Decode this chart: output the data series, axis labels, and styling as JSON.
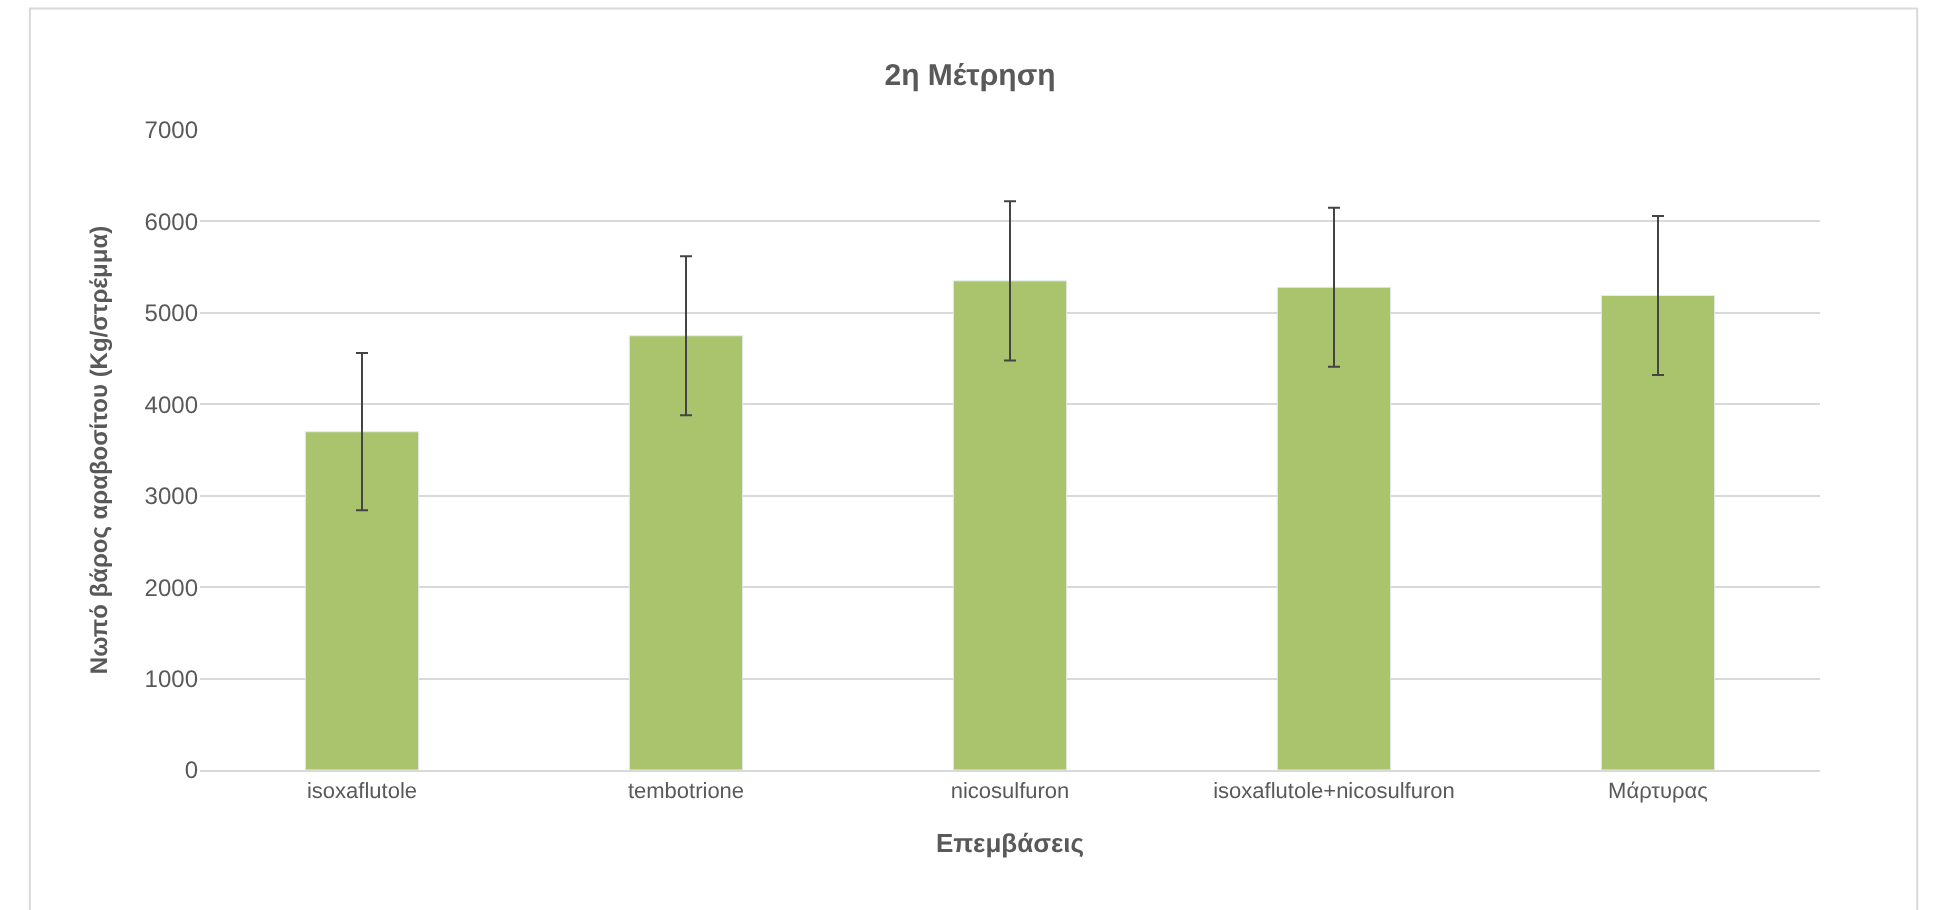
{
  "chart_data": {
    "type": "bar",
    "title": "2η Μέτρηση",
    "xlabel": "Επεμβάσεις",
    "ylabel": "Νωπό βάρος αραβοσίτου (Kg/στρέμμα)",
    "categories": [
      "isoxaflutole",
      "tembotrione",
      "nicosulfuron",
      "isoxaflutole+nicosulfuron",
      "Μάρτυρας"
    ],
    "values": [
      3700,
      4750,
      5350,
      5280,
      5190
    ],
    "errors": [
      860,
      870,
      870,
      870,
      870
    ],
    "color": "#a9c46c",
    "ylim": [
      0,
      7000
    ],
    "yticks": [
      0,
      1000,
      2000,
      3000,
      4000,
      5000,
      6000,
      7000
    ],
    "grid": "y"
  }
}
